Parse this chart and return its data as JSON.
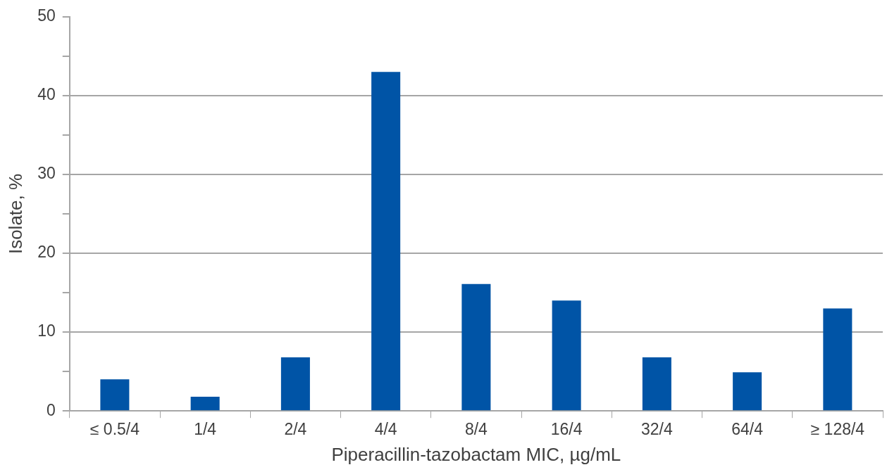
{
  "chart_data": {
    "type": "bar",
    "categories": [
      "≤ 0.5/4",
      "1/4",
      "2/4",
      "4/4",
      "8/4",
      "16/4",
      "32/4",
      "64/4",
      "≥ 128/4"
    ],
    "values": [
      4.0,
      1.8,
      6.8,
      43.0,
      16.1,
      14.0,
      6.8,
      4.9,
      13.0
    ],
    "color": "#0054a6",
    "xlabel": "Piperacillin-tazobactam MIC, µg/mL",
    "ylabel": "Isolate, %",
    "ylim": [
      0,
      50
    ],
    "yticks": [
      0,
      {
        "value": 5,
        "label": null
      },
      10,
      {
        "value": 15,
        "label": null
      },
      20,
      {
        "value": 25,
        "label": null
      },
      30,
      {
        "value": 35,
        "label": null
      },
      40,
      {
        "value": 45,
        "label": null
      },
      50
    ],
    "grid": "y"
  }
}
